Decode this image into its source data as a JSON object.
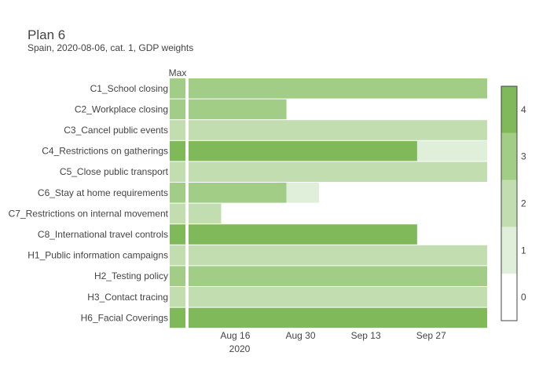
{
  "chart_data": {
    "type": "heatmap",
    "title": "Plan 6",
    "subtitle": "Spain, 2020-08-06, cat. 1, GDP weights",
    "max_column_label": "Max",
    "x_tick_labels": [
      "Aug 16",
      "Aug 30",
      "Sep 13",
      "Sep 27"
    ],
    "x_tick_dates": [
      "2020-08-16",
      "2020-08-30",
      "2020-09-13",
      "2020-09-27"
    ],
    "x_year_label": "2020",
    "x_range": [
      "2020-08-06",
      "2020-10-09"
    ],
    "color_scale": {
      "range": [
        -0.5,
        4.5
      ],
      "ticks": [
        0,
        1,
        2,
        3,
        4
      ],
      "tick_labels": [
        "0",
        "1",
        "2",
        "3",
        "4"
      ],
      "colors": [
        "#ffffff",
        "#e0efd9",
        "#c2deb0",
        "#a2cd86",
        "#80b95a"
      ]
    },
    "rows": [
      {
        "label": "C1_School closing",
        "max": 3,
        "segments": [
          {
            "start": "2020-08-06",
            "end": "2020-10-09",
            "value": 3
          }
        ]
      },
      {
        "label": "C2_Workplace closing",
        "max": 3,
        "segments": [
          {
            "start": "2020-08-06",
            "end": "2020-08-27",
            "value": 3
          },
          {
            "start": "2020-08-27",
            "end": "2020-10-09",
            "value": 0
          }
        ]
      },
      {
        "label": "C3_Cancel public events",
        "max": 2,
        "segments": [
          {
            "start": "2020-08-06",
            "end": "2020-10-09",
            "value": 2
          }
        ]
      },
      {
        "label": "C4_Restrictions on gatherings",
        "max": 4,
        "segments": [
          {
            "start": "2020-08-06",
            "end": "2020-09-24",
            "value": 4
          },
          {
            "start": "2020-09-24",
            "end": "2020-10-09",
            "value": 1
          }
        ]
      },
      {
        "label": "C5_Close public transport",
        "max": 2,
        "segments": [
          {
            "start": "2020-08-06",
            "end": "2020-10-09",
            "value": 2
          }
        ]
      },
      {
        "label": "C6_Stay at home requirements",
        "max": 3,
        "segments": [
          {
            "start": "2020-08-06",
            "end": "2020-08-27",
            "value": 3
          },
          {
            "start": "2020-08-27",
            "end": "2020-09-03",
            "value": 1
          },
          {
            "start": "2020-09-03",
            "end": "2020-10-09",
            "value": 0
          }
        ]
      },
      {
        "label": "C7_Restrictions on internal movement",
        "max": 2,
        "segments": [
          {
            "start": "2020-08-06",
            "end": "2020-08-13",
            "value": 2
          },
          {
            "start": "2020-08-13",
            "end": "2020-10-09",
            "value": 0
          }
        ]
      },
      {
        "label": "C8_International travel controls",
        "max": 4,
        "segments": [
          {
            "start": "2020-08-06",
            "end": "2020-09-24",
            "value": 4
          },
          {
            "start": "2020-09-24",
            "end": "2020-10-09",
            "value": 0
          }
        ]
      },
      {
        "label": "H1_Public information campaigns",
        "max": 2,
        "segments": [
          {
            "start": "2020-08-06",
            "end": "2020-10-09",
            "value": 2
          }
        ]
      },
      {
        "label": "H2_Testing policy",
        "max": 3,
        "segments": [
          {
            "start": "2020-08-06",
            "end": "2020-10-09",
            "value": 3
          }
        ]
      },
      {
        "label": "H3_Contact tracing",
        "max": 2,
        "segments": [
          {
            "start": "2020-08-06",
            "end": "2020-10-09",
            "value": 2
          }
        ]
      },
      {
        "label": "H6_Facial Coverings",
        "max": 4,
        "segments": [
          {
            "start": "2020-08-06",
            "end": "2020-10-09",
            "value": 4
          }
        ]
      }
    ]
  }
}
